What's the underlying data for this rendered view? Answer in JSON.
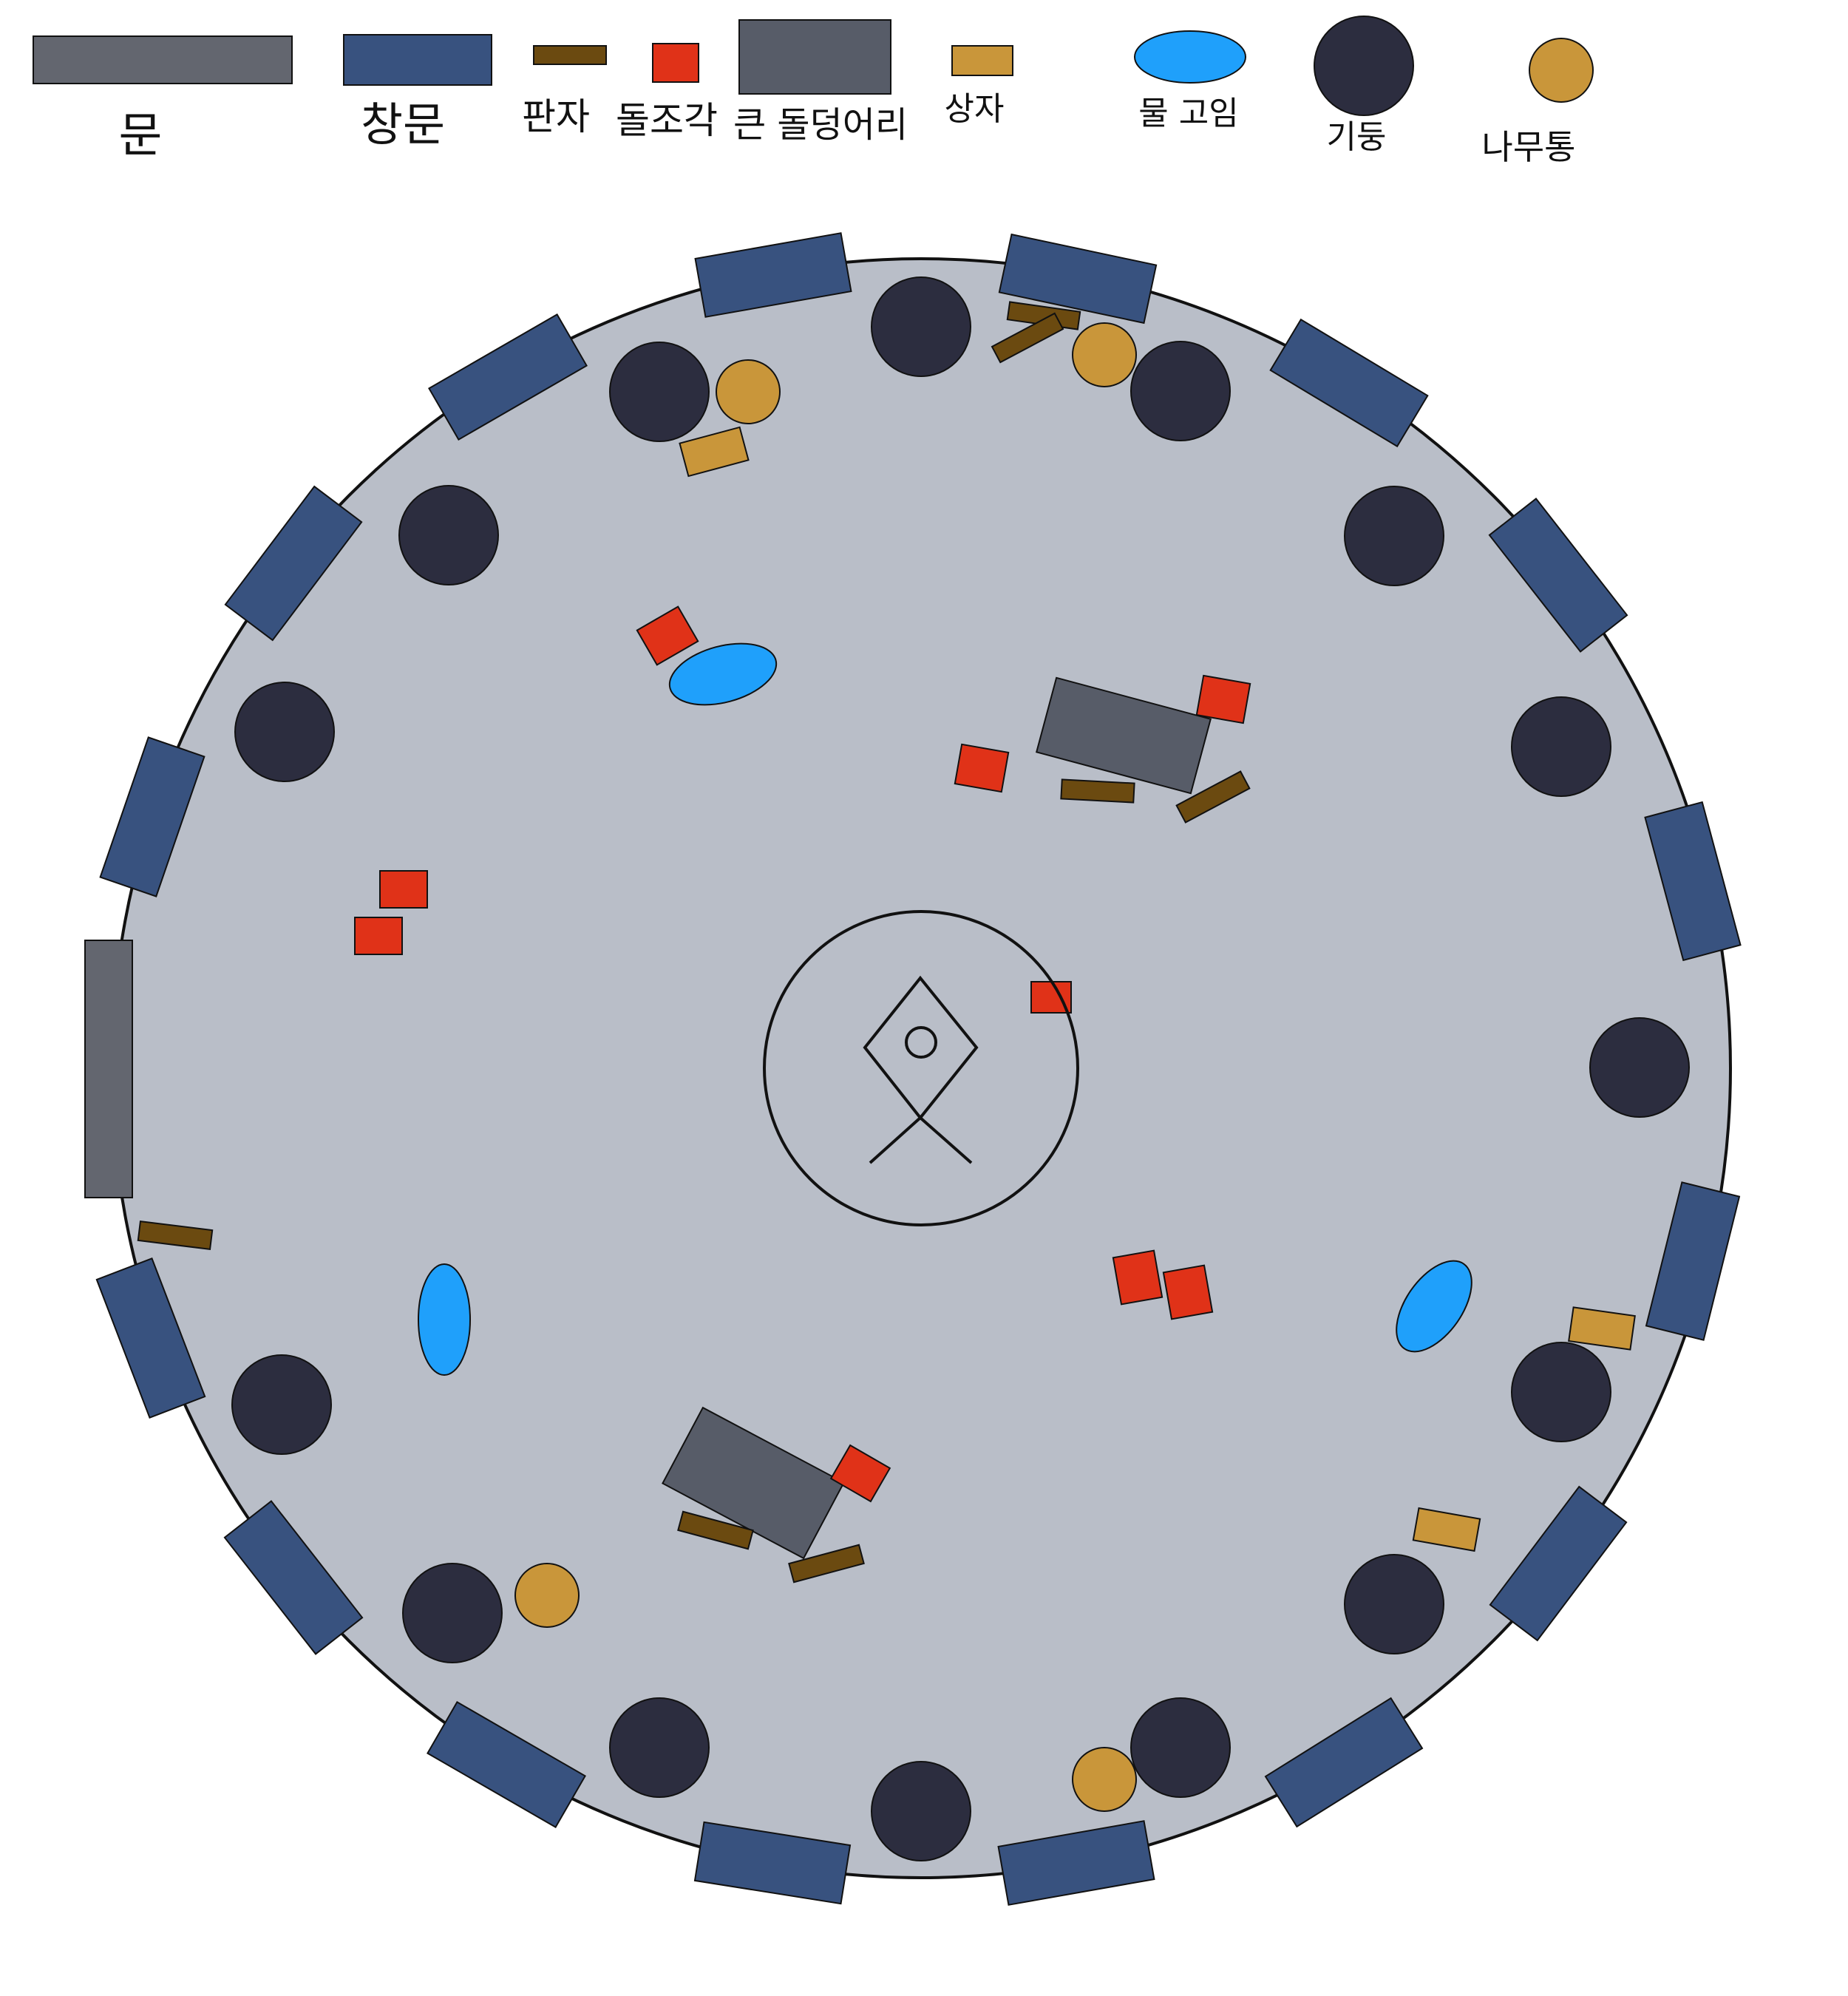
{
  "legend": {
    "door": {
      "label": "문"
    },
    "window": {
      "label": "창문"
    },
    "plank": {
      "label": "판자"
    },
    "debris": {
      "label": "돌조각"
    },
    "boulder": {
      "label": "큰 돌덩어리"
    },
    "crate": {
      "label": "상자"
    },
    "puddle": {
      "label": "물 고임"
    },
    "pillar": {
      "label": "기둥"
    },
    "barrel": {
      "label": "나무통"
    }
  },
  "colors": {
    "floor": "#b9bec8",
    "door": "#63666f",
    "window": "#38527f",
    "plank": "#6b4a10",
    "debris": "#e03218",
    "boulder": "#575c68",
    "crate": "#c9963a",
    "puddle": "#1fa0fb",
    "pillar": "#2c2d3f",
    "barrel": "#c9963a",
    "outline": "#111111"
  },
  "center_symbol": {
    "name": "othala-rune"
  }
}
